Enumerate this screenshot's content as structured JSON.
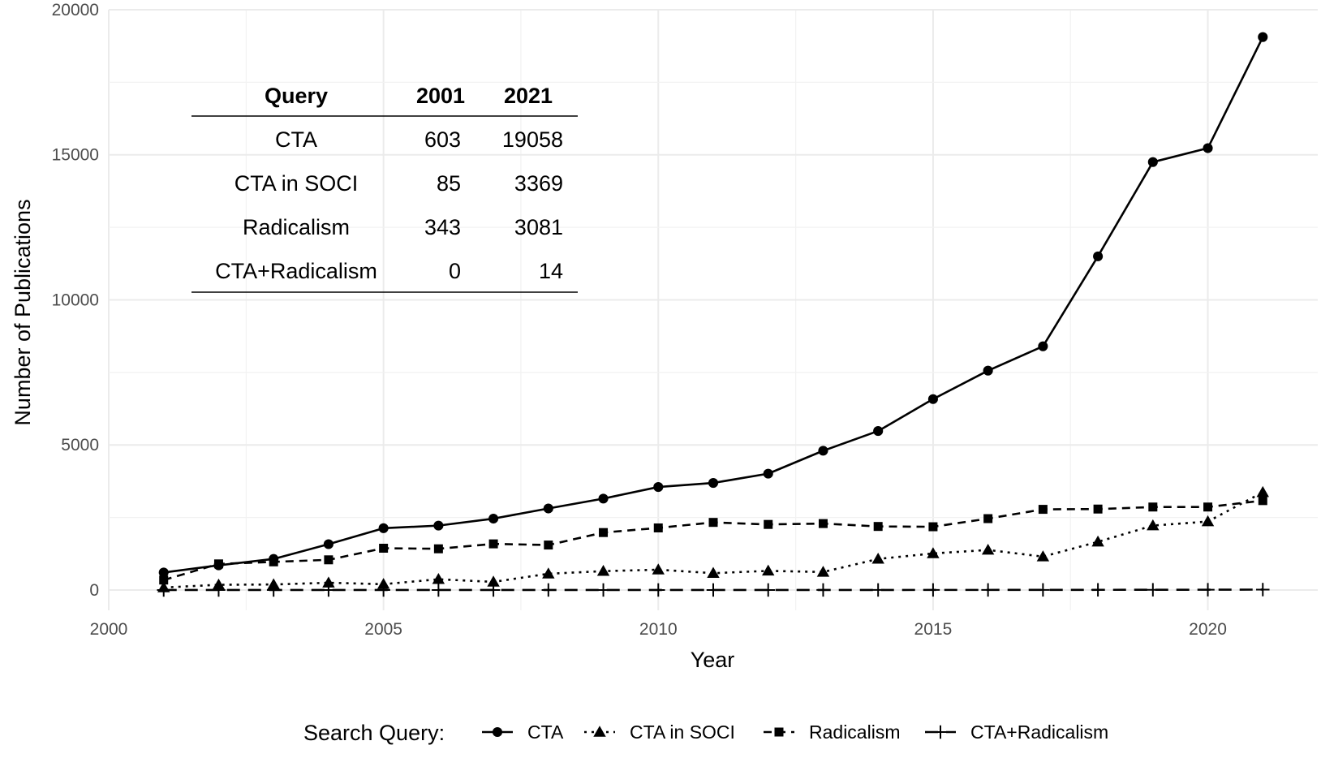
{
  "chart_data": {
    "type": "line",
    "title": "",
    "xlabel": "Year",
    "ylabel": "Number of Publications",
    "xlim": [
      2000,
      2022
    ],
    "ylim": [
      -700,
      20000
    ],
    "x_ticks": [
      2000,
      2005,
      2010,
      2015,
      2020
    ],
    "y_ticks": [
      0,
      5000,
      10000,
      15000,
      20000
    ],
    "grid": true,
    "legend": {
      "title": "Search Query:",
      "position": "bottom"
    },
    "x": [
      2001,
      2002,
      2003,
      2004,
      2005,
      2006,
      2007,
      2008,
      2009,
      2010,
      2011,
      2012,
      2013,
      2014,
      2015,
      2016,
      2017,
      2018,
      2019,
      2020,
      2021
    ],
    "series": [
      {
        "name": "CTA",
        "marker": "circle",
        "dash": "solid",
        "values": [
          603,
          850,
          1070,
          1580,
          2130,
          2220,
          2460,
          2810,
          3150,
          3550,
          3690,
          4010,
          4800,
          5480,
          6580,
          7560,
          8400,
          11500,
          14750,
          15230,
          19058
        ]
      },
      {
        "name": "CTA in SOCI",
        "marker": "triangle",
        "dash": "dotted",
        "values": [
          85,
          180,
          190,
          250,
          200,
          370,
          280,
          560,
          650,
          700,
          580,
          660,
          620,
          1070,
          1260,
          1380,
          1150,
          1660,
          2220,
          2360,
          3369
        ]
      },
      {
        "name": "Radicalism",
        "marker": "square",
        "dash": "dashed",
        "values": [
          343,
          900,
          970,
          1040,
          1440,
          1420,
          1590,
          1550,
          1980,
          2140,
          2330,
          2260,
          2290,
          2190,
          2180,
          2460,
          2780,
          2790,
          2860,
          2860,
          3081
        ]
      },
      {
        "name": "CTA+Radicalism",
        "marker": "plus",
        "dash": "longdash",
        "values": [
          0,
          0,
          0,
          0,
          0,
          0,
          0,
          1,
          1,
          1,
          1,
          1,
          2,
          2,
          3,
          3,
          4,
          6,
          8,
          10,
          14
        ]
      }
    ]
  },
  "inset_table": {
    "headers": [
      "Query",
      "2001",
      "2021"
    ],
    "rows": [
      [
        "CTA",
        "603",
        "19058"
      ],
      [
        "CTA in SOCI",
        "85",
        "3369"
      ],
      [
        "Radicalism",
        "343",
        "3081"
      ],
      [
        "CTA+Radicalism",
        "0",
        "14"
      ]
    ]
  }
}
